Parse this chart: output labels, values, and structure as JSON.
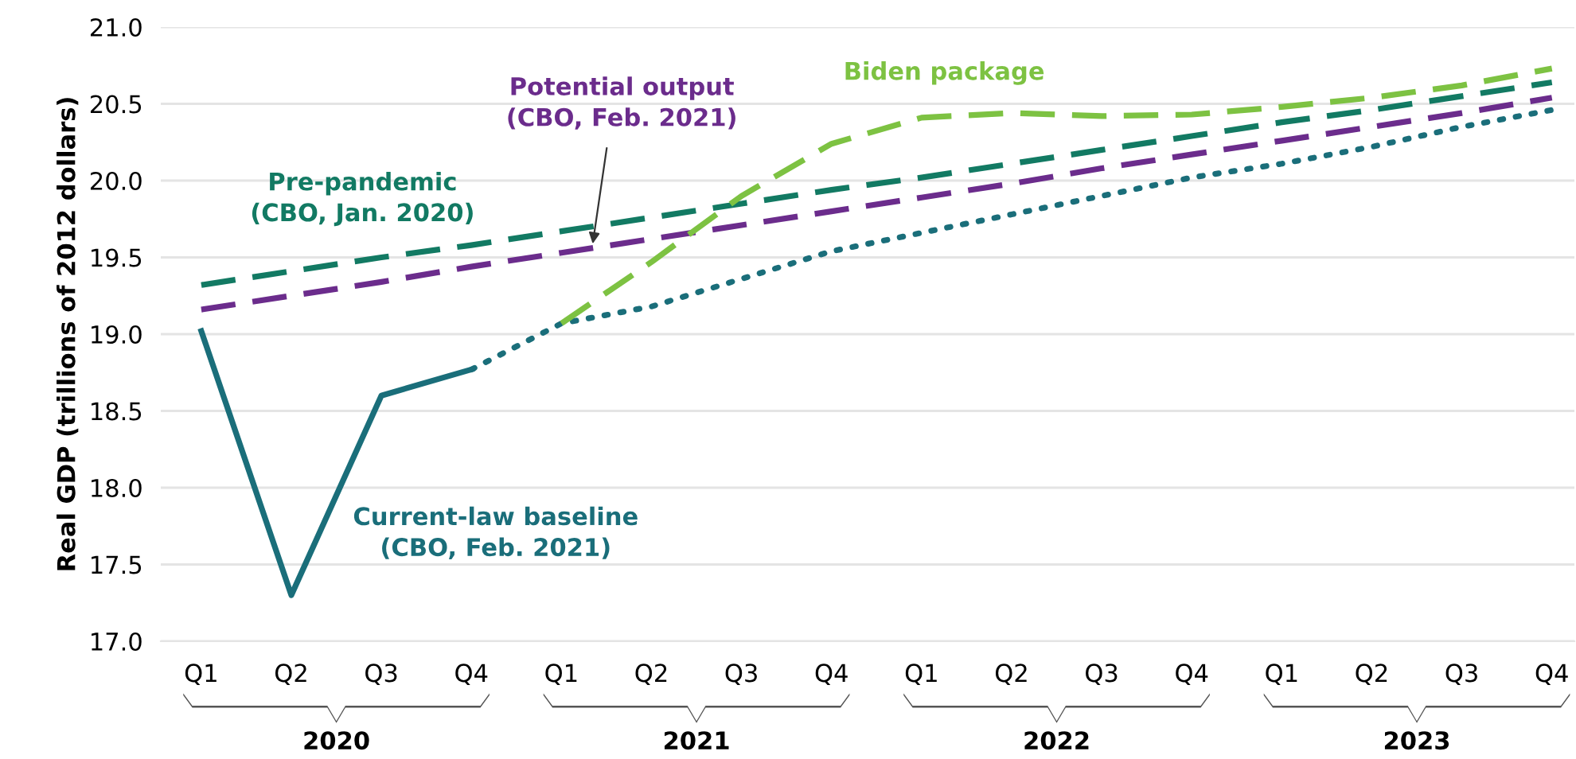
{
  "chart_data": {
    "type": "line",
    "ylabel": "Real GDP (trillions of 2012 dollars)",
    "categories": [
      "Q1",
      "Q2",
      "Q3",
      "Q4",
      "Q1",
      "Q2",
      "Q3",
      "Q4",
      "Q1",
      "Q2",
      "Q3",
      "Q4",
      "Q1",
      "Q2",
      "Q3",
      "Q4"
    ],
    "series": [
      {
        "name": "Current-law baseline\n(CBO, Feb. 2021)",
        "color": "#1a6e7a",
        "line_style": "solid",
        "values": [
          19.02,
          17.3,
          18.6,
          18.77,
          null,
          null,
          null,
          null,
          null,
          null,
          null,
          null,
          null,
          null,
          null,
          null
        ]
      },
      {
        "color": "#1a6e7a",
        "line_style": "dotted",
        "values": [
          null,
          null,
          null,
          18.77,
          19.07,
          19.18,
          19.36,
          19.54,
          19.66,
          19.78,
          19.9,
          20.02,
          20.11,
          20.22,
          20.35,
          20.46
        ]
      },
      {
        "name": "Pre-pandemic\n(CBO, Jan. 2020)",
        "color": "#127a63",
        "line_style": "dashed",
        "values": [
          19.32,
          19.41,
          19.5,
          19.58,
          19.67,
          19.76,
          19.85,
          19.94,
          20.02,
          20.11,
          20.2,
          20.29,
          20.38,
          20.46,
          20.55,
          20.64
        ]
      },
      {
        "name": "Potential output\n(CBO, Feb. 2021)",
        "color": "#6b2c8c",
        "line_style": "dashed",
        "values": [
          19.16,
          19.25,
          19.34,
          19.44,
          19.53,
          19.62,
          19.71,
          19.8,
          19.89,
          19.98,
          20.08,
          20.17,
          20.26,
          20.35,
          20.44,
          20.54
        ]
      },
      {
        "name": "Biden package",
        "color": "#7dc242",
        "line_style": "dashed",
        "values": [
          null,
          null,
          null,
          null,
          19.07,
          19.47,
          19.9,
          20.24,
          20.41,
          20.44,
          20.42,
          20.43,
          20.48,
          20.54,
          20.62,
          20.73
        ]
      }
    ],
    "annotations": [
      "2020",
      "2021",
      "2022",
      "2023"
    ],
    "ylim": [
      17.0,
      21.0
    ],
    "yticks": [
      {
        "value": 17.0,
        "label": "17.0"
      },
      {
        "value": 17.5,
        "label": "17.5"
      },
      {
        "value": 18.0,
        "label": "18.0"
      },
      {
        "value": 18.5,
        "label": "18.5"
      },
      {
        "value": 19.0,
        "label": "19.0"
      },
      {
        "value": 19.5,
        "label": "19.5"
      },
      {
        "value": 20.0,
        "label": "20.0"
      },
      {
        "value": 20.5,
        "label": "20.5"
      },
      {
        "value": 21.0,
        "label": "21.0"
      }
    ],
    "grid": "y",
    "legend": false
  }
}
